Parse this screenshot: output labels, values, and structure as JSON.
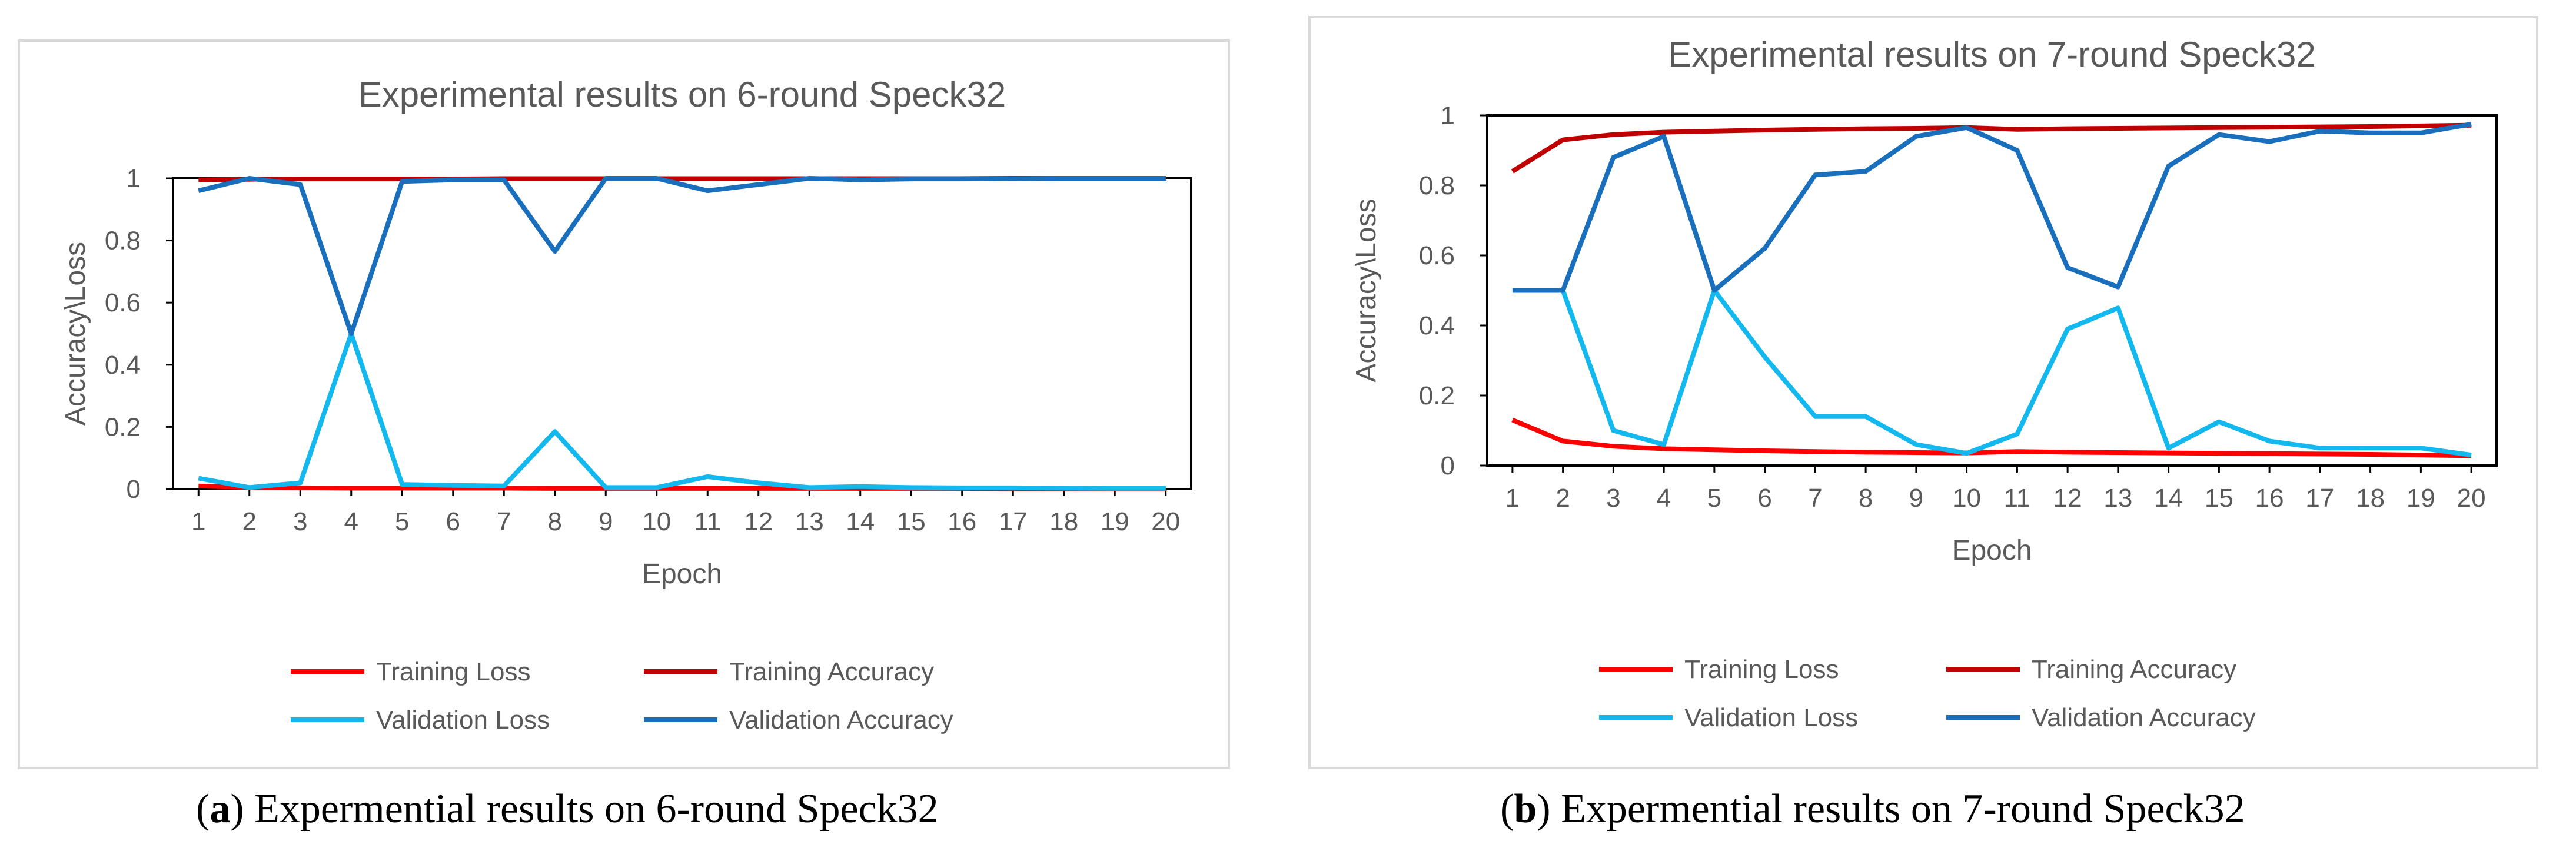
{
  "chart_data": [
    {
      "type": "line",
      "title": "Experimental results on 6-round Speck32",
      "xlabel": "Epoch",
      "ylabel": "Accuracy\\Loss",
      "ylim": [
        0,
        1.0
      ],
      "yticks": [
        "0",
        "0.2",
        "0.4",
        "0.6",
        "0.8",
        "1"
      ],
      "x": [
        "1",
        "2",
        "3",
        "4",
        "5",
        "6",
        "7",
        "8",
        "9",
        "10",
        "11",
        "12",
        "13",
        "14",
        "15",
        "16",
        "17",
        "18",
        "19",
        "20"
      ],
      "grid": false,
      "legend_position": "bottom",
      "series": [
        {
          "name": "Training Loss",
          "color": "#ff0000",
          "values": [
            0.01,
            0.005,
            0.004,
            0.003,
            0.003,
            0.003,
            0.003,
            0.002,
            0.002,
            0.002,
            0.002,
            0.002,
            0.002,
            0.002,
            0.002,
            0.002,
            0.001,
            0.001,
            0.001,
            0.001
          ]
        },
        {
          "name": "Training Accuracy",
          "color": "#c00000",
          "values": [
            0.995,
            0.997,
            0.998,
            0.998,
            0.998,
            0.998,
            0.999,
            0.999,
            0.999,
            0.999,
            0.999,
            0.999,
            0.999,
            0.999,
            0.999,
            0.999,
            1.0,
            1.0,
            1.0,
            1.0
          ]
        },
        {
          "name": "Validation  Loss",
          "color": "#12b8ee",
          "values": [
            0.035,
            0.005,
            0.02,
            0.5,
            0.015,
            0.012,
            0.01,
            0.185,
            0.005,
            0.005,
            0.04,
            0.02,
            0.005,
            0.008,
            0.005,
            0.004,
            0.004,
            0.003,
            0.002,
            0.002
          ]
        },
        {
          "name": "Validation  Accuracy",
          "color": "#1a6fbd",
          "values": [
            0.96,
            1.0,
            0.98,
            0.5,
            0.99,
            0.995,
            0.995,
            0.765,
            1.0,
            1.0,
            0.96,
            0.98,
            1.0,
            0.995,
            0.998,
            0.998,
            0.999,
            1.0,
            1.0,
            1.0
          ]
        }
      ]
    },
    {
      "type": "line",
      "title": "Experimental results on 7-round Speck32",
      "xlabel": "Epoch",
      "ylabel": "Accuracy\\Loss",
      "ylim": [
        0,
        1.0
      ],
      "yticks": [
        "0",
        "0.2",
        "0.4",
        "0.6",
        "0.8",
        "1"
      ],
      "x": [
        "1",
        "2",
        "3",
        "4",
        "5",
        "6",
        "7",
        "8",
        "9",
        "10",
        "11",
        "12",
        "13",
        "14",
        "15",
        "16",
        "17",
        "18",
        "19",
        "20"
      ],
      "grid": false,
      "legend_position": "bottom",
      "series": [
        {
          "name": "Training Loss",
          "color": "#ff0000",
          "values": [
            0.13,
            0.07,
            0.055,
            0.048,
            0.045,
            0.042,
            0.04,
            0.038,
            0.037,
            0.036,
            0.04,
            0.038,
            0.037,
            0.036,
            0.035,
            0.034,
            0.033,
            0.032,
            0.03,
            0.028
          ]
        },
        {
          "name": "Training Accuracy",
          "color": "#c00000",
          "values": [
            0.84,
            0.93,
            0.945,
            0.952,
            0.955,
            0.958,
            0.96,
            0.962,
            0.963,
            0.965,
            0.96,
            0.962,
            0.963,
            0.964,
            0.965,
            0.966,
            0.967,
            0.968,
            0.97,
            0.972
          ]
        },
        {
          "name": "Validation Loss",
          "color": "#12b8ee",
          "values": [
            0.5,
            0.5,
            0.1,
            0.06,
            0.5,
            0.31,
            0.14,
            0.14,
            0.06,
            0.035,
            0.09,
            0.39,
            0.45,
            0.05,
            0.125,
            0.07,
            0.05,
            0.05,
            0.05,
            0.03
          ]
        },
        {
          "name": "Validation Accuracy",
          "color": "#1a6fbd",
          "values": [
            0.5,
            0.5,
            0.88,
            0.94,
            0.5,
            0.62,
            0.83,
            0.84,
            0.94,
            0.965,
            0.9,
            0.565,
            0.51,
            0.855,
            0.945,
            0.925,
            0.955,
            0.95,
            0.95,
            0.975
          ]
        }
      ]
    }
  ],
  "captions": [
    {
      "label": "a",
      "text": " Expermential results on 6-round Speck32"
    },
    {
      "label": "b",
      "text": " Expermential results on 7-round Speck32"
    }
  ]
}
